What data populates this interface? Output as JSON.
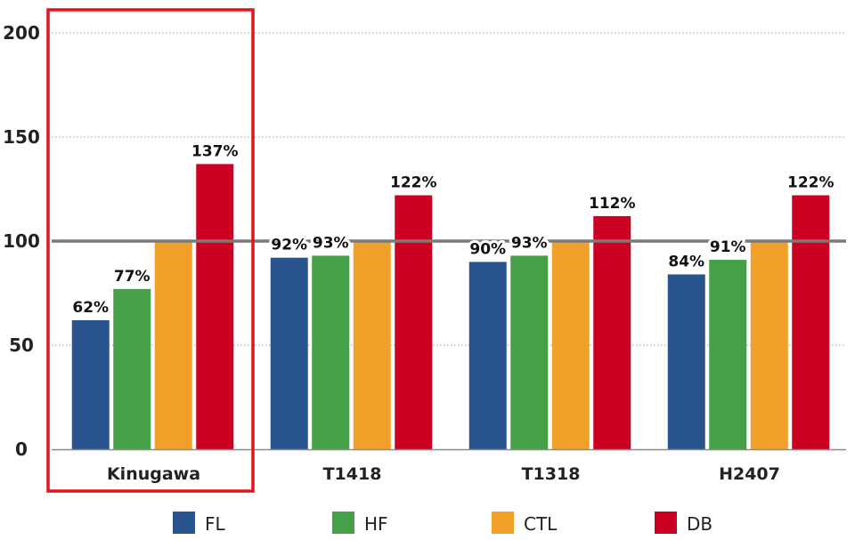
{
  "chart_data": {
    "type": "bar",
    "categories": [
      "Kinugawa",
      "T1418",
      "T1318",
      "H2407"
    ],
    "series": [
      {
        "name": "FL",
        "color": "#2a548e",
        "values": [
          62,
          92,
          90,
          84
        ],
        "labels": [
          "62%",
          "92%",
          "90%",
          "84%"
        ]
      },
      {
        "name": "HF",
        "color": "#46a047",
        "values": [
          77,
          93,
          93,
          91
        ],
        "labels": [
          "77%",
          "93%",
          "93%",
          "91%"
        ]
      },
      {
        "name": "CTL",
        "color": "#f1a12a",
        "values": [
          100,
          100,
          100,
          100
        ],
        "labels": [
          "",
          "",
          "",
          ""
        ]
      },
      {
        "name": "DB",
        "color": "#cc0022",
        "values": [
          137,
          122,
          112,
          122
        ],
        "labels": [
          "137%",
          "122%",
          "112%",
          "122%"
        ]
      }
    ],
    "yticks": [
      "0",
      "50",
      "100",
      "150",
      "200"
    ],
    "ylim": [
      0,
      200
    ],
    "reference_line": 100,
    "grid": "dotted horizontal",
    "legend": "bottom",
    "highlight": {
      "category": "Kinugawa",
      "color": "#e0141e"
    },
    "title": "",
    "xlabel": "",
    "ylabel": ""
  }
}
